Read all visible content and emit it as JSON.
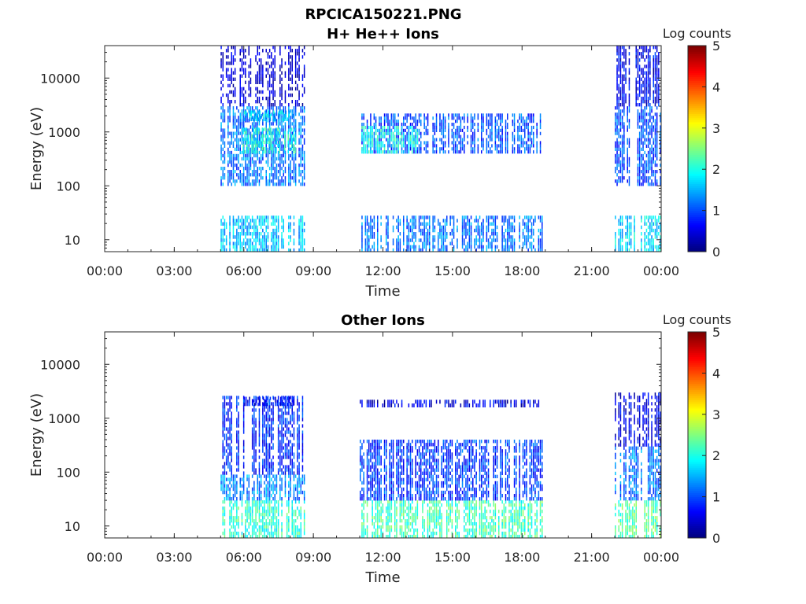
{
  "figure": {
    "filename": "RPCICA150221.PNG"
  },
  "chart_data": [
    {
      "type": "heatmap",
      "title": "H+ He++ Ions",
      "xlabel": "Time",
      "ylabel": "Energy (eV)",
      "y_scale": "log",
      "x_range_hours": [
        0,
        24
      ],
      "y_range_ev": [
        6,
        40000
      ],
      "x_tick_labels": [
        "00:00",
        "03:00",
        "06:00",
        "09:00",
        "12:00",
        "15:00",
        "18:00",
        "21:00",
        "00:00"
      ],
      "x_tick_hours": [
        0,
        3,
        6,
        9,
        12,
        15,
        18,
        21,
        24
      ],
      "y_tick_labels": [
        "10",
        "100",
        "1000",
        "10000"
      ],
      "y_tick_values": [
        10,
        100,
        1000,
        10000
      ],
      "colorbar": {
        "label": "Log counts",
        "range": [
          0,
          5
        ],
        "tick_labels": [
          "0",
          "1",
          "2",
          "3",
          "4",
          "5"
        ],
        "colormap": "jet"
      },
      "data_intervals_hours": [
        [
          5.0,
          8.6
        ],
        [
          11.0,
          18.85
        ],
        [
          22.0,
          24.0
        ]
      ],
      "bands": [
        {
          "t": [
            5.0,
            8.6
          ],
          "e": [
            6,
            28
          ],
          "level": 1.6
        },
        {
          "t": [
            5.0,
            8.6
          ],
          "e": [
            100,
            3000
          ],
          "level": 1.2
        },
        {
          "t": [
            5.8,
            8.3
          ],
          "e": [
            400,
            1200
          ],
          "level": 2.0
        },
        {
          "t": [
            6.0,
            8.1
          ],
          "e": [
            1600,
            2500
          ],
          "level": 1.7
        },
        {
          "t": [
            5.0,
            8.6
          ],
          "e": [
            3000,
            40000
          ],
          "level": 0.3
        },
        {
          "t": [
            11.0,
            18.85
          ],
          "e": [
            6,
            28
          ],
          "level": 1.2
        },
        {
          "t": [
            11.0,
            18.85
          ],
          "e": [
            400,
            2200
          ],
          "level": 1.0
        },
        {
          "t": [
            11.0,
            13.5
          ],
          "e": [
            400,
            1300
          ],
          "level": 1.9
        },
        {
          "t": [
            22.0,
            24.0
          ],
          "e": [
            6,
            28
          ],
          "level": 1.7
        },
        {
          "t": [
            22.0,
            24.0
          ],
          "e": [
            100,
            3000
          ],
          "level": 1.0
        },
        {
          "t": [
            22.0,
            24.0
          ],
          "e": [
            3000,
            40000
          ],
          "level": 0.6
        }
      ]
    },
    {
      "type": "heatmap",
      "title": "Other Ions",
      "xlabel": "Time",
      "ylabel": "Energy (eV)",
      "y_scale": "log",
      "x_range_hours": [
        0,
        24
      ],
      "y_range_ev": [
        6,
        40000
      ],
      "x_tick_labels": [
        "00:00",
        "03:00",
        "06:00",
        "09:00",
        "12:00",
        "15:00",
        "18:00",
        "21:00",
        "00:00"
      ],
      "x_tick_hours": [
        0,
        3,
        6,
        9,
        12,
        15,
        18,
        21,
        24
      ],
      "y_tick_labels": [
        "10",
        "100",
        "1000",
        "10000"
      ],
      "y_tick_values": [
        10,
        100,
        1000,
        10000
      ],
      "colorbar": {
        "label": "Log counts",
        "range": [
          0,
          5
        ],
        "tick_labels": [
          "0",
          "1",
          "2",
          "3",
          "4",
          "5"
        ],
        "colormap": "jet"
      },
      "data_intervals_hours": [
        [
          5.0,
          8.6
        ],
        [
          11.0,
          18.85
        ],
        [
          22.0,
          24.0
        ]
      ],
      "bands": [
        {
          "t": [
            5.0,
            8.6
          ],
          "e": [
            6,
            30
          ],
          "level": 2.1
        },
        {
          "t": [
            5.0,
            8.6
          ],
          "e": [
            30,
            90
          ],
          "level": 1.3
        },
        {
          "t": [
            5.0,
            8.6
          ],
          "e": [
            90,
            2600
          ],
          "level": 0.8
        },
        {
          "t": [
            6.0,
            8.1
          ],
          "e": [
            1700,
            2500
          ],
          "level": 0.6
        },
        {
          "t": [
            11.0,
            18.85
          ],
          "e": [
            6,
            30
          ],
          "level": 2.2
        },
        {
          "t": [
            11.0,
            18.85
          ],
          "e": [
            30,
            400
          ],
          "level": 0.9
        },
        {
          "t": [
            11.0,
            18.85
          ],
          "e": [
            1600,
            2200
          ],
          "level": 0.5
        },
        {
          "t": [
            22.0,
            24.0
          ],
          "e": [
            6,
            30
          ],
          "level": 2.3
        },
        {
          "t": [
            22.0,
            24.0
          ],
          "e": [
            30,
            300
          ],
          "level": 1.2
        },
        {
          "t": [
            22.0,
            24.0
          ],
          "e": [
            300,
            3000
          ],
          "level": 0.5
        }
      ]
    }
  ]
}
